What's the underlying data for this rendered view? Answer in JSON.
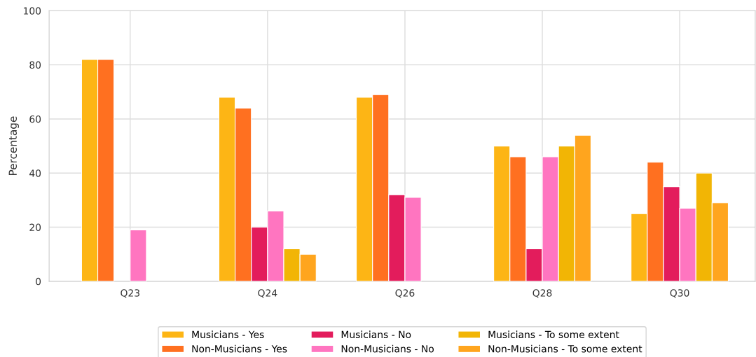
{
  "chart_data": {
    "type": "bar",
    "ylabel": "Percentage",
    "categories": [
      "Q23",
      "Q24",
      "Q26",
      "Q28",
      "Q30"
    ],
    "series": [
      {
        "name": "Musicians - Yes",
        "color": "#fdb515",
        "values": [
          82,
          68,
          68,
          50,
          25
        ]
      },
      {
        "name": "Non-Musicians - Yes",
        "color": "#ff7020",
        "values": [
          82,
          64,
          69,
          46,
          44
        ]
      },
      {
        "name": "Musicians - No",
        "color": "#e31c5c",
        "values": [
          null,
          20,
          32,
          12,
          35
        ]
      },
      {
        "name": "Non-Musicians - No",
        "color": "#ff75c0",
        "values": [
          19,
          26,
          31,
          46,
          27
        ]
      },
      {
        "name": "Musicians - To some extent",
        "color": "#f2b505",
        "values": [
          null,
          12,
          null,
          50,
          40
        ]
      },
      {
        "name": "Non-Musicians - To some extent",
        "color": "#ffa51e",
        "values": [
          null,
          10,
          null,
          54,
          29
        ]
      }
    ],
    "ylim": [
      0,
      100
    ],
    "yticks": [
      0,
      20,
      40,
      60,
      80,
      100
    ],
    "grid": true,
    "legend": "bottom"
  }
}
